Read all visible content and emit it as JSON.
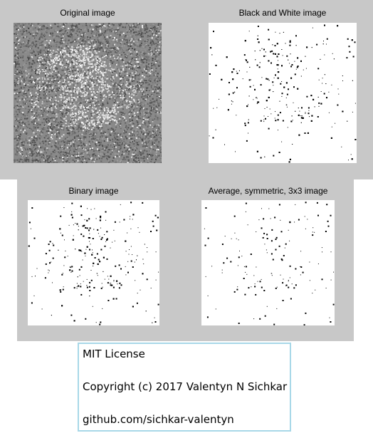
{
  "figure1": {
    "panels": [
      {
        "title": "Original image"
      },
      {
        "title": "Black and White image"
      }
    ]
  },
  "figure2": {
    "panels": [
      {
        "title": "Binary image"
      },
      {
        "title": "Average, symmetric, 3x3 image"
      }
    ]
  },
  "license": {
    "line1": "MIT License",
    "line2": "Copyright (c) 2017 Valentyn N Sichkar",
    "line3": "github.com/sichkar-valentyn"
  },
  "colors": {
    "figure_background": "#c8c8c8",
    "license_border": "#a8d8e8"
  }
}
